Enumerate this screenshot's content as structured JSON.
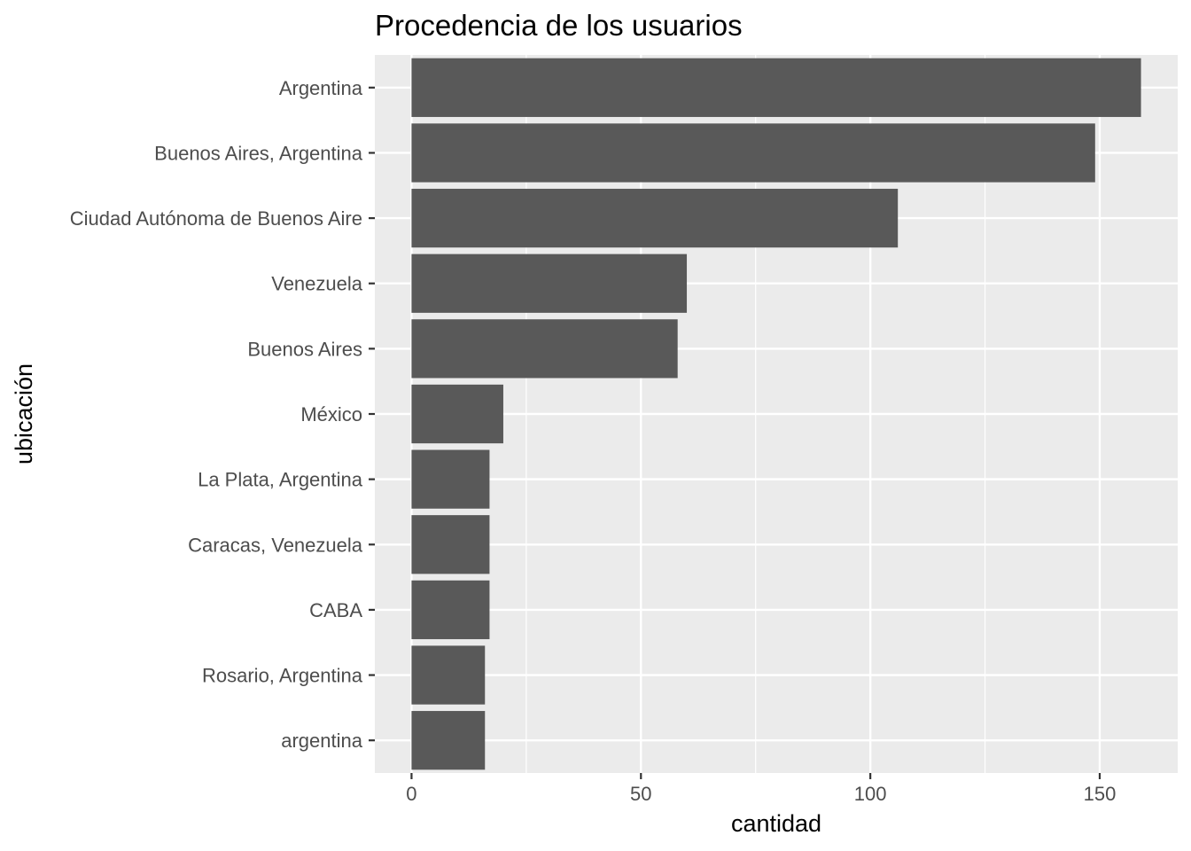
{
  "chart_data": {
    "type": "bar",
    "orientation": "horizontal",
    "title": "Procedencia de los usuarios",
    "xlabel": "cantidad",
    "ylabel": "ubicación",
    "categories": [
      "Argentina",
      "Buenos Aires, Argentina",
      "Ciudad Autónoma de Buenos Aire",
      "Venezuela",
      "Buenos Aires",
      "México",
      "La Plata, Argentina",
      "Caracas, Venezuela",
      "CABA",
      "Rosario, Argentina",
      "argentina"
    ],
    "values": [
      159,
      149,
      106,
      60,
      58,
      20,
      17,
      17,
      17,
      16,
      16
    ],
    "xlim": [
      -8,
      167
    ],
    "xticks": [
      0,
      50,
      100,
      150
    ],
    "xticks_minor": [
      25,
      75,
      125
    ],
    "grid": true,
    "legend": "none",
    "colors": {
      "bar": "#595959",
      "panel": "#ebebeb",
      "grid": "#ffffff",
      "tick_text": "#4d4d4d",
      "tick_mark": "#333333"
    }
  }
}
